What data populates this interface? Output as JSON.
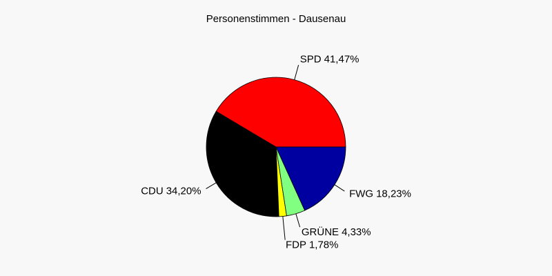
{
  "chart_data": {
    "type": "pie",
    "title": "Personenstimmen - Dausenau",
    "categories": [
      "SPD",
      "CDU",
      "FDP",
      "GRÜNE",
      "FWG"
    ],
    "values": [
      41.47,
      34.2,
      1.78,
      4.33,
      18.23
    ],
    "value_labels": [
      "41,47%",
      "34,20%",
      "1,78%",
      "4,33%",
      "18,23%"
    ],
    "colors": [
      "#ff0000",
      "#000000",
      "#ffff00",
      "#80ff80",
      "#0000a0"
    ]
  }
}
